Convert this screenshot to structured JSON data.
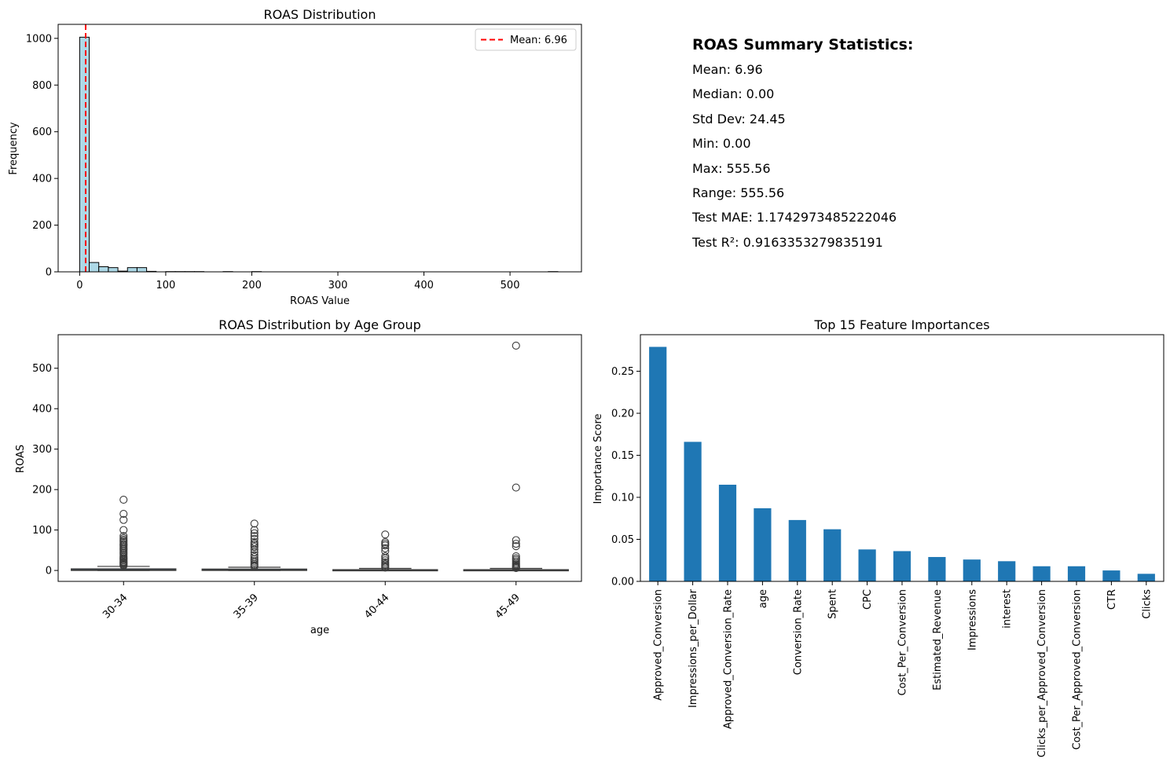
{
  "colors": {
    "hist_fill": "#add8e6",
    "hist_edge": "#000000",
    "mean_line": "#ff0000",
    "box_edge": "#3b3b3b",
    "box_fill": "#3a74a8",
    "bar": "#1f77b4"
  },
  "chart_data": [
    {
      "type": "bar",
      "title": "ROAS Distribution",
      "xlabel": "ROAS Value",
      "ylabel": "Frequency",
      "xlim": [
        -25,
        583
      ],
      "ylim": [
        0,
        1060
      ],
      "xticks": [
        0,
        100,
        200,
        300,
        400,
        500
      ],
      "yticks": [
        0,
        200,
        400,
        600,
        800,
        1000
      ],
      "bin_width": 11.11,
      "bins": [
        {
          "x0": 0.0,
          "count": 1005
        },
        {
          "x0": 11.11,
          "count": 40
        },
        {
          "x0": 22.22,
          "count": 22
        },
        {
          "x0": 33.33,
          "count": 18
        },
        {
          "x0": 44.44,
          "count": 3
        },
        {
          "x0": 55.56,
          "count": 18
        },
        {
          "x0": 66.67,
          "count": 18
        },
        {
          "x0": 77.78,
          "count": 2
        },
        {
          "x0": 88.89,
          "count": 0
        },
        {
          "x0": 100.0,
          "count": 1
        },
        {
          "x0": 111.11,
          "count": 1
        },
        {
          "x0": 122.22,
          "count": 1
        },
        {
          "x0": 133.33,
          "count": 1
        },
        {
          "x0": 166.67,
          "count": 1
        },
        {
          "x0": 200.0,
          "count": 1
        },
        {
          "x0": 544.44,
          "count": 1
        }
      ],
      "mean_line": {
        "value": 6.96,
        "legend_label": "Mean: 6.96"
      },
      "grid": false,
      "legend_position": "top-right"
    },
    {
      "type": "box",
      "title": "ROAS Distribution by Age Group",
      "xlabel": "age",
      "ylabel": "ROAS",
      "ylim": [
        -27,
        583
      ],
      "yticks": [
        0,
        100,
        200,
        300,
        400,
        500
      ],
      "categories": [
        "30-34",
        "35-39",
        "40-44",
        "45-49"
      ],
      "boxes": [
        {
          "q1": 0,
          "median": 1.5,
          "q3": 4,
          "whisker_low": 0,
          "whisker_high": 10,
          "outliers": [
            12,
            14,
            16,
            18,
            20,
            22,
            25,
            28,
            30,
            33,
            36,
            40,
            43,
            46,
            50,
            53,
            56,
            60,
            63,
            66,
            70,
            73,
            76,
            80,
            85,
            100,
            125,
            140,
            175
          ]
        },
        {
          "q1": 0,
          "median": 1.2,
          "q3": 3.5,
          "whisker_low": 0,
          "whisker_high": 8,
          "outliers": [
            10,
            13,
            16,
            20,
            24,
            28,
            33,
            38,
            45,
            52,
            58,
            62,
            66,
            70,
            78,
            85,
            92,
            100,
            116
          ]
        },
        {
          "q1": 0,
          "median": 0.5,
          "q3": 2,
          "whisker_low": 0,
          "whisker_high": 5,
          "outliers": [
            7,
            10,
            13,
            16,
            20,
            25,
            30,
            35,
            48,
            55,
            62,
            66,
            70,
            89
          ]
        },
        {
          "q1": 0,
          "median": 0.5,
          "q3": 2,
          "whisker_low": 0,
          "whisker_high": 5,
          "outliers": [
            6,
            8,
            10,
            12,
            15,
            18,
            22,
            26,
            30,
            35,
            60,
            66,
            75,
            205,
            556
          ]
        }
      ],
      "grid": false
    },
    {
      "type": "bar",
      "title": "Top 15 Feature Importances",
      "xlabel": "",
      "ylabel": "Importance Score",
      "ylim": [
        0,
        0.2935
      ],
      "yticks": [
        0.0,
        0.05,
        0.1,
        0.15,
        0.2,
        0.25
      ],
      "categories": [
        "Approved_Conversion",
        "Impressions_per_Dollar",
        "Approved_Conversion_Rate",
        "age",
        "Conversion_Rate",
        "Spent",
        "CPC",
        "Cost_Per_Conversion",
        "Estimated_Revenue",
        "Impressions",
        "interest",
        "Clicks_per_Approved_Conversion",
        "Cost_Per_Approved_Conversion",
        "CTR",
        "Clicks"
      ],
      "values": [
        0.279,
        0.166,
        0.115,
        0.087,
        0.073,
        0.062,
        0.038,
        0.036,
        0.029,
        0.026,
        0.024,
        0.018,
        0.018,
        0.013,
        0.009
      ],
      "grid": false
    }
  ],
  "summary": {
    "heading": "ROAS Summary Statistics:",
    "lines": [
      "Mean: 6.96",
      "Median: 0.00",
      "Std Dev: 24.45",
      "Min: 0.00",
      "Max: 555.56",
      "Range: 555.56",
      "Test MAE: 1.1742973485222046",
      "Test R²: 0.9163353279835191"
    ]
  }
}
